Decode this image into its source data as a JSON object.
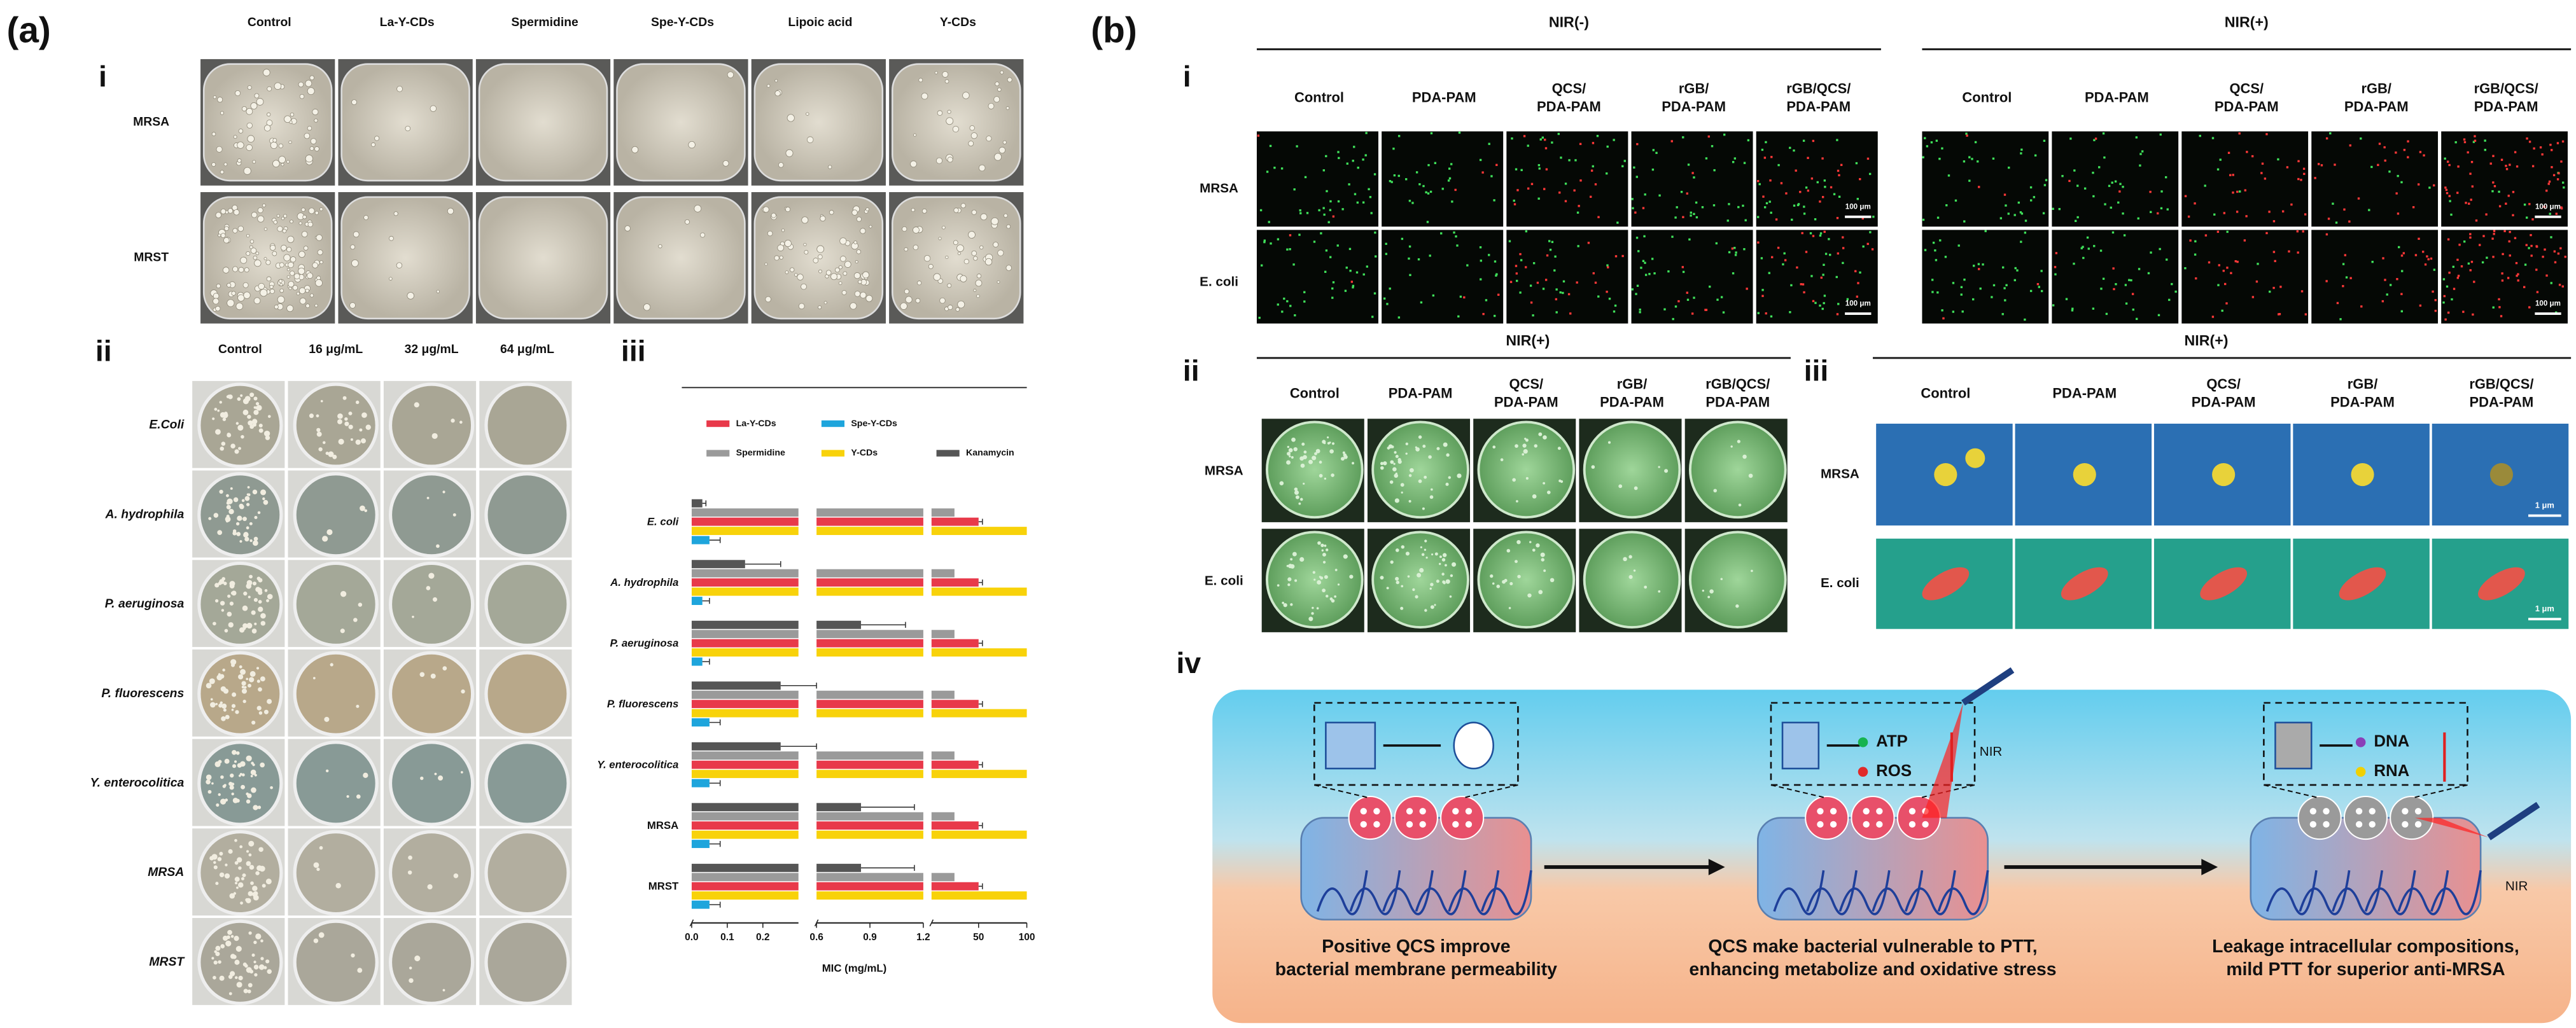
{
  "panel_a": {
    "label": "(a)",
    "i": {
      "label": "i",
      "columns": [
        "Control",
        "La-Y-CDs",
        "Spermidine",
        "Spe-Y-CDs",
        "Lipoic acid",
        "Y-CDs"
      ],
      "rows": [
        "MRSA",
        "MRST"
      ]
    },
    "ii": {
      "label": "ii",
      "columns": [
        "Control",
        "16 μg/mL",
        "32 μg/mL",
        "64 μg/mL"
      ],
      "rows": [
        "E.Coli",
        "A. hydrophila",
        "P. aeruginosa",
        "P. fluorescens",
        "Y. enterocolitica",
        "MRSA",
        "MRST"
      ]
    },
    "iii": {
      "label": "iii"
    }
  },
  "chart_data": {
    "type": "bar",
    "orientation": "horizontal",
    "xlabel": "MIC (mg/mL)",
    "categories": [
      "E. coli",
      "A. hydrophila",
      "P. aeruginosa",
      "P. fluorescens",
      "Y. enterocolitica",
      "MRSA",
      "MRST"
    ],
    "x_segments": [
      {
        "xlim": [
          0,
          0.3
        ],
        "xticks": [
          {
            "value": 0,
            "label": "0.0"
          },
          0.1,
          0.2
        ]
      },
      {
        "xlim": [
          0.6,
          1.2
        ],
        "xticks": [
          0.6,
          0.9,
          1.2
        ]
      },
      {
        "xlim": [
          1.2,
          100
        ],
        "xticks": [
          50,
          100
        ]
      }
    ],
    "series": [
      {
        "name": "La-Y-CDs",
        "color": "#e8394a",
        "values": [
          50,
          50,
          50,
          50,
          50,
          50,
          50
        ],
        "errors": [
          4,
          4,
          4,
          4,
          4,
          4,
          4
        ]
      },
      {
        "name": "Spe-Y-CDs",
        "color": "#1ea5dc",
        "values": [
          0.05,
          0.03,
          0.03,
          0.05,
          0.05,
          0.05,
          0.05
        ],
        "errors": [
          0.03,
          0.02,
          0.02,
          0.03,
          0.03,
          0.03,
          0.03
        ]
      },
      {
        "name": "Spermidine",
        "color": "#9a9a9a",
        "values": [
          25,
          25,
          25,
          25,
          25,
          25,
          25
        ]
      },
      {
        "name": "Y-CDs",
        "color": "#f8d20a",
        "values": [
          100,
          100,
          100,
          100,
          100,
          100,
          100
        ]
      },
      {
        "name": "Kanamycin",
        "color": "#555555",
        "values": [
          0.03,
          0.15,
          0.85,
          0.25,
          0.25,
          0.85,
          0.85
        ],
        "errors": [
          0.01,
          0.1,
          0.25,
          0.35,
          0.35,
          0.3,
          0.3
        ]
      }
    ]
  },
  "panel_b": {
    "label": "(b)",
    "i": {
      "label": "i",
      "groups": [
        {
          "title": "NIR(-)",
          "columns": [
            [
              "Control"
            ],
            [
              "PDA-PAM"
            ],
            [
              "QCS/",
              "PDA-PAM"
            ],
            [
              "rGB/",
              "PDA-PAM"
            ],
            [
              "rGB/QCS/",
              "PDA-PAM"
            ]
          ]
        },
        {
          "title": "NIR(+)",
          "columns": [
            [
              "Control"
            ],
            [
              "PDA-PAM"
            ],
            [
              "QCS/",
              "PDA-PAM"
            ],
            [
              "rGB/",
              "PDA-PAM"
            ],
            [
              "rGB/QCS/",
              "PDA-PAM"
            ]
          ]
        }
      ],
      "rows": [
        "MRSA",
        "E. coli"
      ],
      "scale_bar": "100 μm"
    },
    "ii": {
      "label": "ii",
      "title": "NIR(+)",
      "columns": [
        [
          "Control"
        ],
        [
          "PDA-PAM"
        ],
        [
          "QCS/",
          "PDA-PAM"
        ],
        [
          "rGB/",
          "PDA-PAM"
        ],
        [
          "rGB/QCS/",
          "PDA-PAM"
        ]
      ],
      "rows": [
        "MRSA",
        "E. coli"
      ]
    },
    "iii": {
      "label": "iii",
      "title": "NIR(+)",
      "columns": [
        [
          "Control"
        ],
        [
          "PDA-PAM"
        ],
        [
          "QCS/",
          "PDA-PAM"
        ],
        [
          "rGB/",
          "PDA-PAM"
        ],
        [
          "rGB/QCS/",
          "PDA-PAM"
        ]
      ],
      "rows": [
        "MRSA",
        "E. coli"
      ],
      "scale_bar": "1 μm"
    },
    "iv": {
      "label": "iv",
      "steps": [
        {
          "inset": [],
          "caption": [
            "Positive QCS improve",
            "bacterial membrane permeability"
          ]
        },
        {
          "inset": [
            "ATP",
            "ROS",
            "NIR"
          ],
          "caption": [
            "QCS make bacterial vulnerable to PTT,",
            "enhancing metabolize and oxidative stress"
          ]
        },
        {
          "inset": [
            "DNA",
            "RNA",
            "NIR"
          ],
          "caption": [
            "Leakage intracellular compositions,",
            "mild PTT for superior anti-MRSA"
          ]
        }
      ]
    }
  }
}
